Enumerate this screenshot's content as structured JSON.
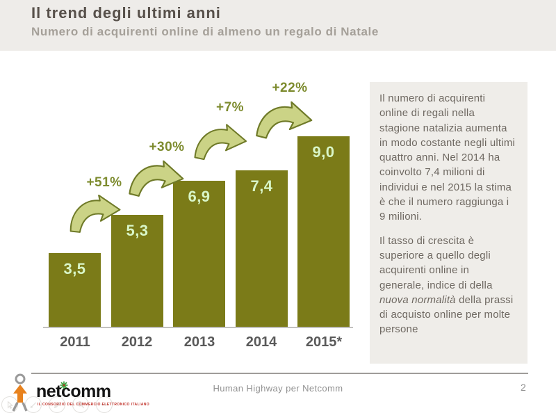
{
  "slide": {
    "title": "Il trend degli ultimi anni",
    "subtitle": "Numero di acquirenti online di almeno un regalo di Natale"
  },
  "chart_data": {
    "type": "bar",
    "title": "Numero di acquirenti online di almeno un regalo di Natale (milioni)",
    "categories": [
      "2011",
      "2012",
      "2013",
      "2014",
      "2015*"
    ],
    "values": [
      3.5,
      5.3,
      6.9,
      7.4,
      9.0
    ],
    "value_labels": [
      "3,5",
      "5,3",
      "6,9",
      "7,4",
      "9,0"
    ],
    "growth_percent": [
      51,
      30,
      7,
      22
    ],
    "growth_labels": [
      "+51%",
      "+30%",
      "+7%",
      "+22%"
    ],
    "xlabel": "",
    "ylabel": "",
    "ylim": [
      0,
      10
    ],
    "grid": false,
    "legend": "none",
    "bar_color": "#7b7b18",
    "value_label_color": "#d9f6c8",
    "growth_label_color": "#7d8b2e",
    "arrow_fill": "#cbd386",
    "arrow_stroke": "#6f7a28"
  },
  "panel": {
    "paragraph1": "Il numero di acquirenti online di regali nella stagione natalizia aumenta in modo costante negli ultimi quattro anni. Nel 2014 ha coinvolto 7,4 milioni di individui e nel 2015 la stima è che il numero raggiunga i 9 milioni.",
    "paragraph2_pre": "Il tasso di crescita è superiore a quello degli acquirenti online in generale, indice di della ",
    "paragraph2_italic": "nuova normalità",
    "paragraph2_post": " della prassi di acquisto online per molte persone"
  },
  "footer": {
    "caption": "Human Highway per Netcomm",
    "page_number": "2",
    "logo_text": "netcomm",
    "logo_caption": "IL CONSORZIO DEL COMMERCIO ELETTRONICO ITALIANO"
  },
  "colors": {
    "header_background": "#eeece9",
    "title_text": "#57504a",
    "subtitle_text": "#a5a099",
    "panel_background": "#efede9",
    "panel_text": "#6e6861",
    "year_label": "#595959",
    "axis_line": "#c2c1bf",
    "footer_text": "#919191",
    "logo_orange": "#e8821e",
    "logo_green": "#2f9e33",
    "logo_red": "#c03028"
  }
}
